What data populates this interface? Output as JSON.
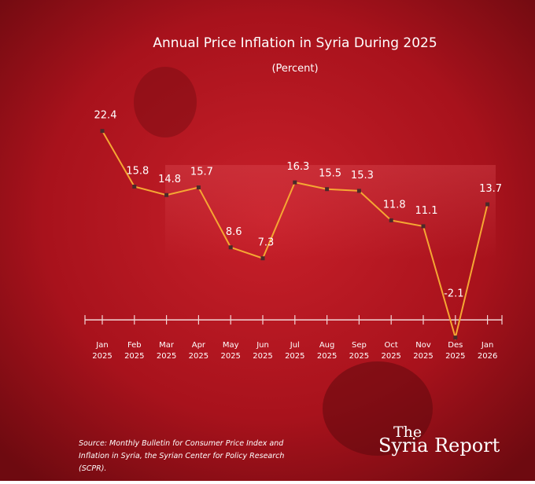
{
  "chart_data": {
    "type": "line",
    "title": "Annual Price Inflation in Syria During 2025",
    "subtitle": "(Percent)",
    "categories": [
      "Jan 2025",
      "Feb 2025",
      "Mar 2025",
      "Apr 2025",
      "May 2025",
      "Jun 2025",
      "Jul 2025",
      "Aug 2025",
      "Sep 2025",
      "Oct 2025",
      "Nov 2025",
      "Des 2025",
      "Jan 2026"
    ],
    "values": [
      22.4,
      15.8,
      14.8,
      15.7,
      8.6,
      7.3,
      16.3,
      15.5,
      15.3,
      11.8,
      11.1,
      -2.1,
      13.7
    ],
    "color": "#f5a733",
    "ylim": [
      -4,
      24
    ],
    "grid": false,
    "source": "Source: Monthly Bulletin for Consumer Price Index and Inflation in Syria, the Syrian Center for Policy Research (SCPR).",
    "brand_top": "The",
    "brand": "Syria Report"
  }
}
